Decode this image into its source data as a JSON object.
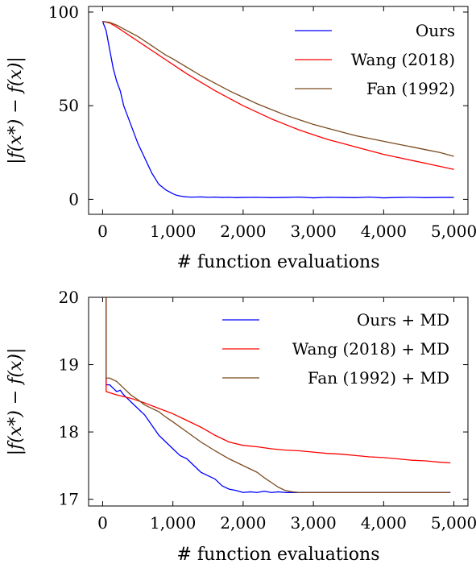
{
  "chart_data": [
    {
      "type": "line",
      "xlabel": "# function evaluations",
      "ylabel": "|f(x*) − f(x)|",
      "xlim": [
        -200,
        5200
      ],
      "ylim": [
        -8,
        103
      ],
      "xticks": [
        0,
        1000,
        2000,
        3000,
        4000,
        5000
      ],
      "xtick_labels": [
        "0",
        "1,000",
        "2,000",
        "3,000",
        "4,000",
        "5,000"
      ],
      "yticks": [
        0,
        50,
        100
      ],
      "ytick_labels": [
        "0",
        "50",
        "100"
      ],
      "legend_position": "top-right",
      "grid": false,
      "series": [
        {
          "name": "Ours",
          "color": "#0000ff",
          "x": [
            0,
            50,
            100,
            150,
            200,
            250,
            300,
            350,
            400,
            450,
            500,
            550,
            600,
            650,
            700,
            750,
            800,
            850,
            900,
            950,
            1000,
            1050,
            1100,
            1150,
            1200,
            1250,
            1300,
            1400,
            1500,
            1600,
            1700,
            1800,
            1900,
            2000,
            2200,
            2400,
            2600,
            2800,
            3000,
            3200,
            3400,
            3600,
            3800,
            4000,
            4200,
            4400,
            4600,
            4800,
            5000
          ],
          "y": [
            95,
            90,
            80,
            70,
            63,
            58,
            50,
            45,
            40,
            35,
            30,
            26,
            22,
            18,
            14,
            11,
            8,
            6.5,
            5,
            4,
            3,
            2.2,
            1.8,
            1.5,
            1.3,
            1.2,
            1.2,
            1.3,
            1.1,
            1.2,
            1.0,
            1.1,
            0.9,
            1.0,
            1.1,
            0.9,
            1.0,
            1.2,
            0.8,
            1.1,
            1.0,
            0.9,
            1.2,
            0.8,
            1.0,
            1.1,
            0.9,
            1.0,
            1.0
          ]
        },
        {
          "name": "Wang (2018)",
          "color": "#ff0000",
          "x": [
            0,
            100,
            200,
            300,
            400,
            500,
            600,
            700,
            800,
            900,
            1000,
            1200,
            1400,
            1600,
            1800,
            2000,
            2200,
            2400,
            2600,
            2800,
            3000,
            3200,
            3400,
            3600,
            3800,
            4000,
            4200,
            4400,
            4600,
            4800,
            5000
          ],
          "y": [
            95,
            94.2,
            92,
            89.5,
            87,
            84.5,
            82,
            79.5,
            77,
            74.5,
            72,
            67,
            62.5,
            58,
            54,
            50,
            46.5,
            43,
            40,
            37,
            34.5,
            32,
            30,
            28,
            26,
            24,
            22.4,
            20.8,
            19.2,
            17.6,
            16
          ]
        },
        {
          "name": "Fan (1992)",
          "color": "#7a4a1e",
          "x": [
            0,
            100,
            200,
            300,
            400,
            500,
            600,
            700,
            800,
            900,
            1000,
            1200,
            1400,
            1600,
            1800,
            2000,
            2200,
            2400,
            2600,
            2800,
            3000,
            3200,
            3400,
            3600,
            3800,
            4000,
            4200,
            4400,
            4600,
            4800,
            5000
          ],
          "y": [
            95,
            94.5,
            93,
            91,
            89,
            87,
            84.5,
            82,
            79.5,
            77,
            75,
            70.5,
            66,
            62,
            58,
            54.5,
            51,
            48,
            45,
            42.5,
            40,
            38,
            36,
            34,
            32.5,
            31,
            29.5,
            28,
            26.5,
            25,
            23
          ]
        }
      ]
    },
    {
      "type": "line",
      "xlabel": "# function evaluations",
      "ylabel": "|f(x*) − f(x)|",
      "xlim": [
        -200,
        5200
      ],
      "ylim": [
        16.9,
        20
      ],
      "xticks": [
        0,
        1000,
        2000,
        3000,
        4000,
        5000
      ],
      "xtick_labels": [
        "0",
        "1,000",
        "2,000",
        "3,000",
        "4,000",
        "5,000"
      ],
      "yticks": [
        17,
        18,
        19,
        20
      ],
      "ytick_labels": [
        "17",
        "18",
        "19",
        "20"
      ],
      "legend_position": "top-right",
      "grid": false,
      "series": [
        {
          "name": "Ours + MD",
          "color": "#0000ff",
          "x": [
            50,
            50,
            100,
            150,
            200,
            250,
            300,
            350,
            400,
            500,
            600,
            700,
            800,
            900,
            1000,
            1100,
            1200,
            1300,
            1400,
            1500,
            1600,
            1700,
            1800,
            1900,
            2000,
            2100,
            2200,
            2300,
            2400,
            2500,
            2600,
            2800,
            3000,
            3200,
            3400,
            3600,
            3800,
            4000,
            4200,
            4400,
            4600,
            4800,
            4950
          ],
          "y": [
            20,
            18.7,
            18.7,
            18.65,
            18.6,
            18.62,
            18.55,
            18.5,
            18.45,
            18.35,
            18.25,
            18.1,
            17.95,
            17.85,
            17.75,
            17.65,
            17.6,
            17.5,
            17.4,
            17.35,
            17.3,
            17.2,
            17.15,
            17.13,
            17.1,
            17.11,
            17.1,
            17.12,
            17.1,
            17.11,
            17.1,
            17.1,
            17.1,
            17.1,
            17.1,
            17.1,
            17.1,
            17.1,
            17.1,
            17.1,
            17.1,
            17.1,
            17.1
          ]
        },
        {
          "name": "Wang (2018) + MD",
          "color": "#ff0000",
          "x": [
            50,
            50,
            200,
            400,
            600,
            800,
            1000,
            1200,
            1400,
            1600,
            1800,
            2000,
            2200,
            2400,
            2600,
            2800,
            3000,
            3200,
            3400,
            3600,
            3800,
            4000,
            4200,
            4400,
            4600,
            4800,
            4950
          ],
          "y": [
            20,
            18.6,
            18.55,
            18.5,
            18.43,
            18.35,
            18.27,
            18.17,
            18.07,
            17.95,
            17.85,
            17.8,
            17.78,
            17.75,
            17.73,
            17.72,
            17.7,
            17.68,
            17.67,
            17.65,
            17.63,
            17.62,
            17.6,
            17.58,
            17.57,
            17.55,
            17.54
          ]
        },
        {
          "name": "Fan (1992) + MD",
          "color": "#7a4a1e",
          "x": [
            50,
            50,
            100,
            200,
            300,
            400,
            500,
            600,
            700,
            800,
            900,
            1000,
            1200,
            1400,
            1600,
            1800,
            2000,
            2200,
            2300,
            2400,
            2500,
            2600,
            2700,
            2800,
            3000,
            3200,
            3400,
            3600,
            3800,
            4000,
            4200,
            4400,
            4600,
            4800,
            4950
          ],
          "y": [
            20,
            18.8,
            18.8,
            18.75,
            18.65,
            18.55,
            18.48,
            18.4,
            18.35,
            18.3,
            18.22,
            18.15,
            18.0,
            17.85,
            17.72,
            17.6,
            17.5,
            17.4,
            17.32,
            17.25,
            17.18,
            17.13,
            17.11,
            17.1,
            17.1,
            17.1,
            17.1,
            17.1,
            17.1,
            17.1,
            17.1,
            17.1,
            17.1,
            17.1,
            17.1
          ]
        }
      ]
    }
  ]
}
